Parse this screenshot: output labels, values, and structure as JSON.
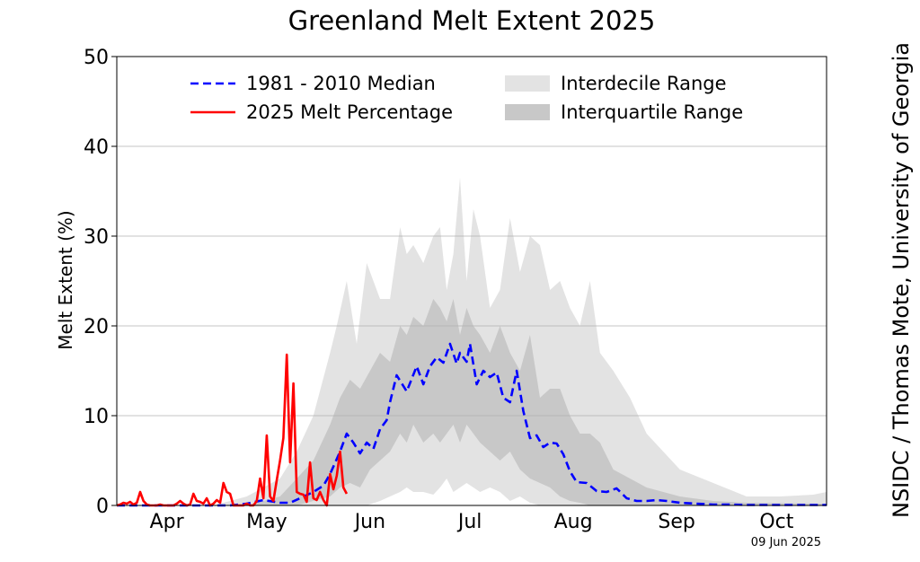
{
  "chart_data": {
    "type": "line",
    "title": "Greenland Melt Extent 2025",
    "ylabel": "Melt Extent (%)",
    "xlabel": "",
    "ylim": [
      0,
      50
    ],
    "xlim_day_of_year": [
      91,
      304
    ],
    "yticks": [
      0,
      10,
      20,
      30,
      40,
      50
    ],
    "xticks": [
      {
        "label": "Apr",
        "day": 106
      },
      {
        "label": "May",
        "day": 136
      },
      {
        "label": "Jun",
        "day": 167
      },
      {
        "label": "Jul",
        "day": 197
      },
      {
        "label": "Aug",
        "day": 228
      },
      {
        "label": "Sep",
        "day": 259
      },
      {
        "label": "Oct",
        "day": 289
      }
    ],
    "grid": "horizontal",
    "legend_placement": "top",
    "colors": {
      "median": "#0000ff",
      "melt": "#ff0000",
      "interdecile": "#e3e3e3",
      "interquartile": "#c8c8c8"
    },
    "series": [
      {
        "name": "1981 - 2010 Median",
        "style": "dashed",
        "x": [
          91,
          100,
          110,
          120,
          125,
          130,
          135,
          140,
          143,
          146,
          150,
          153,
          155,
          158,
          160,
          162,
          164,
          166,
          168,
          170,
          172,
          173,
          175,
          178,
          181,
          183,
          185,
          187,
          189,
          191,
          193,
          194,
          196,
          197,
          199,
          201,
          203,
          205,
          207,
          209,
          211,
          213,
          215,
          217,
          219,
          221,
          223,
          225,
          227,
          229,
          232,
          235,
          238,
          241,
          244,
          247,
          250,
          253,
          256,
          260,
          265,
          270,
          275,
          280,
          290,
          304
        ],
        "y": [
          0,
          0,
          0,
          0,
          0,
          0.2,
          0.6,
          0.3,
          0.3,
          0.8,
          1.5,
          2.2,
          3.5,
          6,
          8,
          7,
          5.8,
          7,
          6.3,
          8.5,
          9.5,
          11.5,
          14.5,
          12.7,
          15.5,
          13.5,
          15.5,
          16.5,
          15.9,
          18,
          15.8,
          17,
          16,
          18,
          13.5,
          15,
          14.3,
          14.8,
          12,
          11.5,
          15,
          10.5,
          7.5,
          7.8,
          6.5,
          7,
          6.9,
          5.7,
          3.8,
          2.6,
          2.5,
          1.6,
          1.5,
          1.9,
          0.8,
          0.5,
          0.5,
          0.6,
          0.5,
          0.3,
          0.2,
          0.1,
          0.1,
          0.05,
          0.05,
          0.05
        ]
      },
      {
        "name": "2025 Melt Percentage",
        "style": "solid",
        "x": [
          91,
          92,
          93,
          94,
          95,
          96,
          97,
          98,
          99,
          100,
          101,
          102,
          103,
          104,
          105,
          106,
          107,
          108,
          109,
          110,
          111,
          112,
          113,
          114,
          115,
          116,
          117,
          118,
          119,
          120,
          121,
          122,
          123,
          124,
          125,
          126,
          127,
          128,
          129,
          130,
          131,
          132,
          133,
          134,
          135,
          136,
          137,
          138,
          139,
          140,
          141,
          142,
          143,
          144,
          145,
          146,
          147,
          148,
          149,
          150,
          151,
          152,
          153,
          154,
          155,
          156,
          157,
          158,
          159,
          160
        ],
        "y": [
          0,
          0.1,
          0.3,
          0.2,
          0.4,
          0.1,
          0.3,
          1.5,
          0.5,
          0.1,
          0,
          0,
          0,
          0.1,
          0,
          0,
          0,
          0,
          0.2,
          0.5,
          0.2,
          0,
          0.1,
          1.3,
          0.5,
          0.4,
          0.2,
          0.8,
          0,
          0.2,
          0.6,
          0.3,
          2.5,
          1.5,
          1.3,
          0,
          0,
          0,
          0,
          0.2,
          0,
          0,
          0.5,
          3,
          0.8,
          7.8,
          1,
          0.5,
          2.8,
          5,
          7.5,
          16.8,
          4.8,
          13.6,
          1.5,
          1.3,
          1.2,
          0.4,
          4.8,
          0.8,
          0.6,
          1.5,
          0.6,
          0,
          3.5,
          1.8,
          3.3,
          6,
          2,
          1.3
        ]
      }
    ],
    "ranges": [
      {
        "name": "Interdecile Range",
        "x": [
          91,
          120,
          130,
          140,
          145,
          150,
          155,
          157,
          160,
          163,
          166,
          170,
          173,
          176,
          178,
          180,
          183,
          186,
          188,
          190,
          192,
          194,
          196,
          198,
          200,
          203,
          206,
          209,
          212,
          215,
          218,
          221,
          224,
          227,
          230,
          233,
          236,
          240,
          245,
          250,
          260,
          270,
          280,
          290,
          300,
          304
        ],
        "upper": [
          0,
          0,
          1,
          3,
          6,
          10,
          17,
          20,
          25,
          18,
          27,
          23,
          23,
          31,
          28,
          29,
          27,
          30,
          31,
          24,
          28,
          36.5,
          25,
          33,
          30,
          22,
          24,
          32,
          26,
          30,
          29,
          24,
          25,
          22,
          20,
          25,
          17,
          15,
          12,
          8,
          4,
          2.5,
          1,
          1,
          1.2,
          1.5
        ],
        "lower": [
          0,
          0,
          0,
          0,
          0,
          0,
          0,
          0,
          0,
          0,
          0,
          0.5,
          1,
          1.5,
          2,
          1.5,
          1.5,
          1.2,
          2,
          3,
          1.5,
          2,
          2.5,
          2,
          1.5,
          2,
          1.5,
          0.5,
          1,
          0.3,
          0,
          0,
          0,
          0,
          0,
          0,
          0,
          0,
          0,
          0,
          0,
          0,
          0,
          0,
          0,
          0
        ]
      },
      {
        "name": "Interquartile Range",
        "x": [
          91,
          130,
          140,
          145,
          150,
          155,
          158,
          161,
          164,
          167,
          170,
          173,
          176,
          178,
          180,
          183,
          186,
          188,
          190,
          192,
          194,
          196,
          198,
          200,
          203,
          206,
          209,
          212,
          215,
          218,
          221,
          224,
          227,
          230,
          233,
          236,
          240,
          245,
          250,
          260,
          270,
          280,
          304
        ],
        "upper": [
          0,
          0,
          1,
          3,
          5,
          9,
          12,
          14,
          13,
          15,
          17,
          16,
          20,
          19,
          21,
          20,
          23,
          22,
          20.5,
          23,
          19,
          22,
          20,
          19,
          17,
          20,
          17,
          15,
          19,
          12,
          13,
          13,
          10,
          8,
          8,
          7,
          4,
          3,
          2,
          1,
          0.5,
          0.3,
          0.2
        ],
        "lower": [
          0,
          0,
          0,
          0,
          0.5,
          1,
          2,
          2.5,
          2,
          4,
          5,
          6,
          8,
          7,
          9,
          7,
          8,
          7,
          8,
          9,
          7,
          9,
          8,
          7,
          6,
          5,
          6,
          4,
          3,
          2.5,
          2,
          1,
          0.5,
          0.3,
          0,
          0,
          0,
          0,
          0,
          0,
          0,
          0,
          0
        ]
      }
    ],
    "datestamp": "09 Jun 2025",
    "credit": "NSIDC / Thomas Mote, University of Georgia"
  }
}
